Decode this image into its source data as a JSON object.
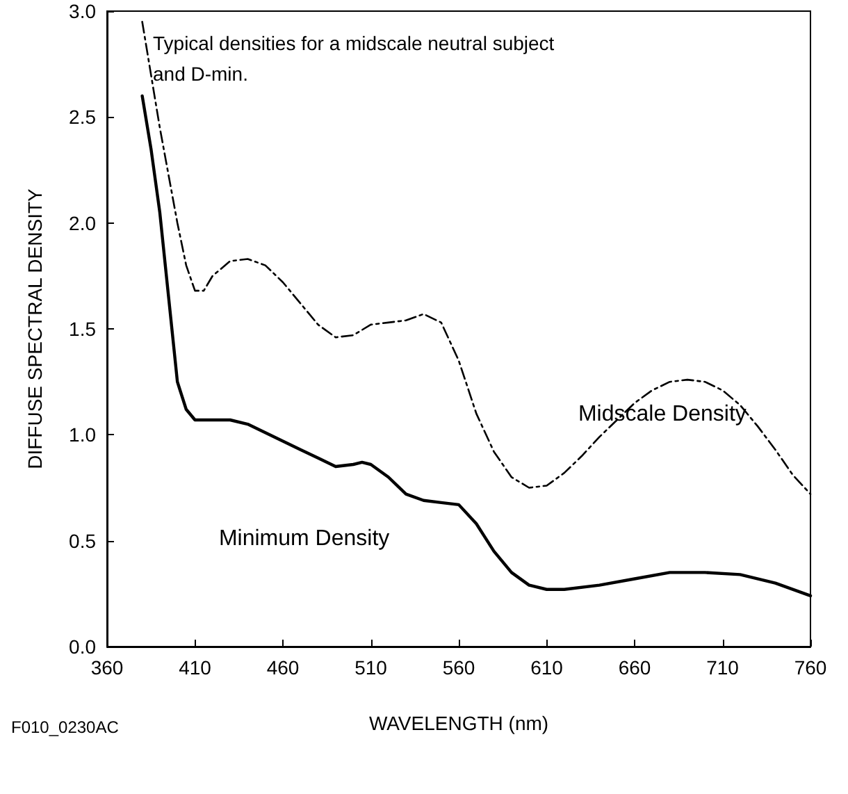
{
  "chart_data": {
    "type": "line",
    "xlabel": "WAVELENGTH (nm)",
    "ylabel": "DIFFUSE SPECTRAL DENSITY",
    "annotations": [
      "Typical densities for a midscale neutral subject\nand D-min.",
      "F010_0230AC"
    ],
    "xlim": [
      360,
      760
    ],
    "xticks": [
      360,
      410,
      460,
      510,
      560,
      610,
      660,
      710,
      760
    ],
    "ylim": [
      0,
      3
    ],
    "yticks": [
      {
        "value": 0,
        "label": "0.0"
      },
      {
        "value": 0.5,
        "label": "0.5"
      },
      {
        "value": 1,
        "label": "1.0"
      },
      {
        "value": 1.5,
        "label": "1.5"
      },
      {
        "value": 2,
        "label": "2.0"
      },
      {
        "value": 2.5,
        "label": "2.5"
      },
      {
        "value": 3,
        "label": "3.0"
      }
    ],
    "grid": false,
    "legend": false,
    "marker": "none",
    "series": [
      {
        "name": "Midscale Density",
        "color": "#000000",
        "line_style": "dashed",
        "x": [
          380,
          390,
          400,
          405,
          410,
          415,
          420,
          430,
          440,
          450,
          460,
          470,
          480,
          490,
          500,
          510,
          520,
          530,
          540,
          550,
          560,
          570,
          580,
          590,
          600,
          610,
          620,
          630,
          640,
          650,
          660,
          670,
          680,
          690,
          700,
          710,
          720,
          730,
          740,
          750,
          760
        ],
        "values": [
          2.95,
          2.45,
          2.0,
          1.8,
          1.68,
          1.68,
          1.75,
          1.82,
          1.83,
          1.8,
          1.72,
          1.62,
          1.52,
          1.46,
          1.47,
          1.52,
          1.53,
          1.54,
          1.57,
          1.53,
          1.35,
          1.1,
          0.92,
          0.8,
          0.75,
          0.76,
          0.82,
          0.9,
          0.99,
          1.07,
          1.15,
          1.21,
          1.25,
          1.26,
          1.25,
          1.21,
          1.14,
          1.04,
          0.93,
          0.81,
          0.72
        ]
      },
      {
        "name": "Minimum Density",
        "color": "#000000",
        "line_style": "solid",
        "x": [
          380,
          385,
          390,
          395,
          400,
          405,
          410,
          420,
          430,
          440,
          450,
          460,
          470,
          480,
          490,
          500,
          505,
          510,
          520,
          530,
          540,
          550,
          560,
          570,
          580,
          590,
          600,
          610,
          620,
          640,
          660,
          680,
          700,
          720,
          740,
          760
        ],
        "values": [
          2.6,
          2.35,
          2.05,
          1.65,
          1.25,
          1.12,
          1.07,
          1.07,
          1.07,
          1.05,
          1.01,
          0.97,
          0.93,
          0.89,
          0.85,
          0.86,
          0.87,
          0.86,
          0.8,
          0.72,
          0.69,
          0.68,
          0.67,
          0.58,
          0.45,
          0.35,
          0.29,
          0.27,
          0.27,
          0.29,
          0.32,
          0.35,
          0.35,
          0.34,
          0.3,
          0.24
        ]
      }
    ]
  }
}
